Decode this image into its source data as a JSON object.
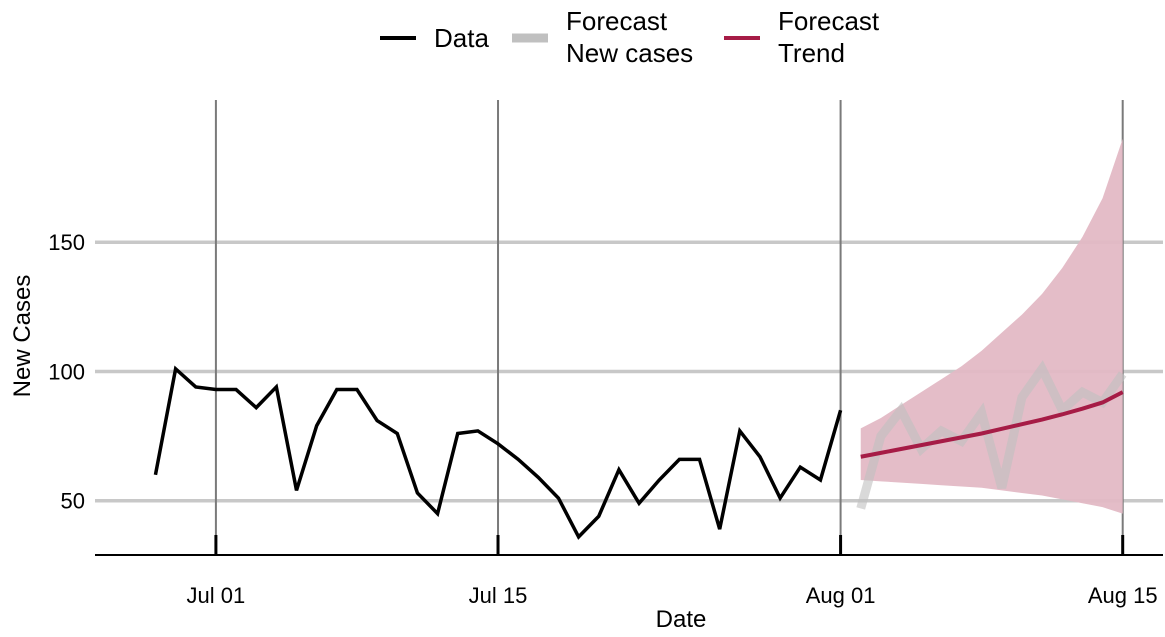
{
  "chart_data": {
    "type": "line",
    "xlabel": "Date",
    "ylabel": "New Cases",
    "xlim": [
      "2020-06-25",
      "2020-08-17"
    ],
    "ylim": [
      29,
      205
    ],
    "x_ticks": [
      {
        "date": "2020-07-01",
        "label": "Jul 01"
      },
      {
        "date": "2020-07-15",
        "label": "Jul 15"
      },
      {
        "date": "2020-08-01",
        "label": "Aug 01"
      },
      {
        "date": "2020-08-15",
        "label": "Aug 15"
      }
    ],
    "y_ticks": [
      {
        "value": 50,
        "label": "50"
      },
      {
        "value": 100,
        "label": "100"
      },
      {
        "value": 150,
        "label": "150"
      }
    ],
    "grid": {
      "x": true,
      "y": true
    },
    "legend": {
      "position": "top",
      "entries": [
        {
          "lines": [
            "Data"
          ],
          "color": "#000000",
          "thickness": 3
        },
        {
          "lines": [
            "Forecast",
            "New cases"
          ],
          "color": "#c0c0c0",
          "thickness": 8
        },
        {
          "lines": [
            "Forecast",
            "Trend"
          ],
          "color": "#a61c46",
          "thickness": 3
        }
      ]
    },
    "series": [
      {
        "name": "Data",
        "color": "#000000",
        "x": [
          "2020-06-28",
          "2020-06-29",
          "2020-06-30",
          "2020-07-01",
          "2020-07-02",
          "2020-07-03",
          "2020-07-04",
          "2020-07-05",
          "2020-07-06",
          "2020-07-07",
          "2020-07-08",
          "2020-07-09",
          "2020-07-10",
          "2020-07-11",
          "2020-07-12",
          "2020-07-13",
          "2020-07-14",
          "2020-07-15",
          "2020-07-16",
          "2020-07-17",
          "2020-07-18",
          "2020-07-19",
          "2020-07-20",
          "2020-07-21",
          "2020-07-22",
          "2020-07-23",
          "2020-07-24",
          "2020-07-25",
          "2020-07-26",
          "2020-07-27",
          "2020-07-28",
          "2020-07-29",
          "2020-07-30",
          "2020-07-31",
          "2020-08-01"
        ],
        "y": [
          60,
          101,
          94,
          93,
          93,
          86,
          94,
          54,
          79,
          93,
          93,
          81,
          76,
          53,
          45,
          76,
          77,
          72,
          66,
          59,
          51,
          36,
          44,
          62,
          49,
          58,
          66,
          66,
          39,
          77,
          67,
          51,
          63,
          58,
          85
        ]
      },
      {
        "name": "Forecast\nNew cases",
        "color": "#c0c0c0",
        "x": [
          "2020-08-02",
          "2020-08-03",
          "2020-08-04",
          "2020-08-05",
          "2020-08-06",
          "2020-08-07",
          "2020-08-08",
          "2020-08-09",
          "2020-08-10",
          "2020-08-11",
          "2020-08-12",
          "2020-08-13",
          "2020-08-14",
          "2020-08-15"
        ],
        "y": [
          47,
          75,
          85,
          70,
          77,
          73,
          84,
          55,
          90,
          101,
          85,
          92,
          88,
          99
        ]
      },
      {
        "name": "Forecast\nTrend",
        "color": "#a61c46",
        "x": [
          "2020-08-02",
          "2020-08-03",
          "2020-08-04",
          "2020-08-05",
          "2020-08-06",
          "2020-08-07",
          "2020-08-08",
          "2020-08-09",
          "2020-08-10",
          "2020-08-11",
          "2020-08-12",
          "2020-08-13",
          "2020-08-14",
          "2020-08-15"
        ],
        "y": [
          67,
          68.5,
          70,
          71.5,
          73,
          74.5,
          76,
          77.8,
          79.6,
          81.4,
          83.4,
          85.6,
          88,
          92
        ],
        "band_lower": [
          58,
          57.5,
          57,
          56.5,
          56,
          55.5,
          55,
          54,
          53,
          52,
          50.5,
          49,
          47.5,
          45
        ],
        "band_upper": [
          78,
          82,
          87,
          92,
          97,
          102,
          108,
          115,
          122,
          130,
          140,
          152,
          167,
          190
        ],
        "band_color": "#e3b9c5"
      }
    ]
  }
}
